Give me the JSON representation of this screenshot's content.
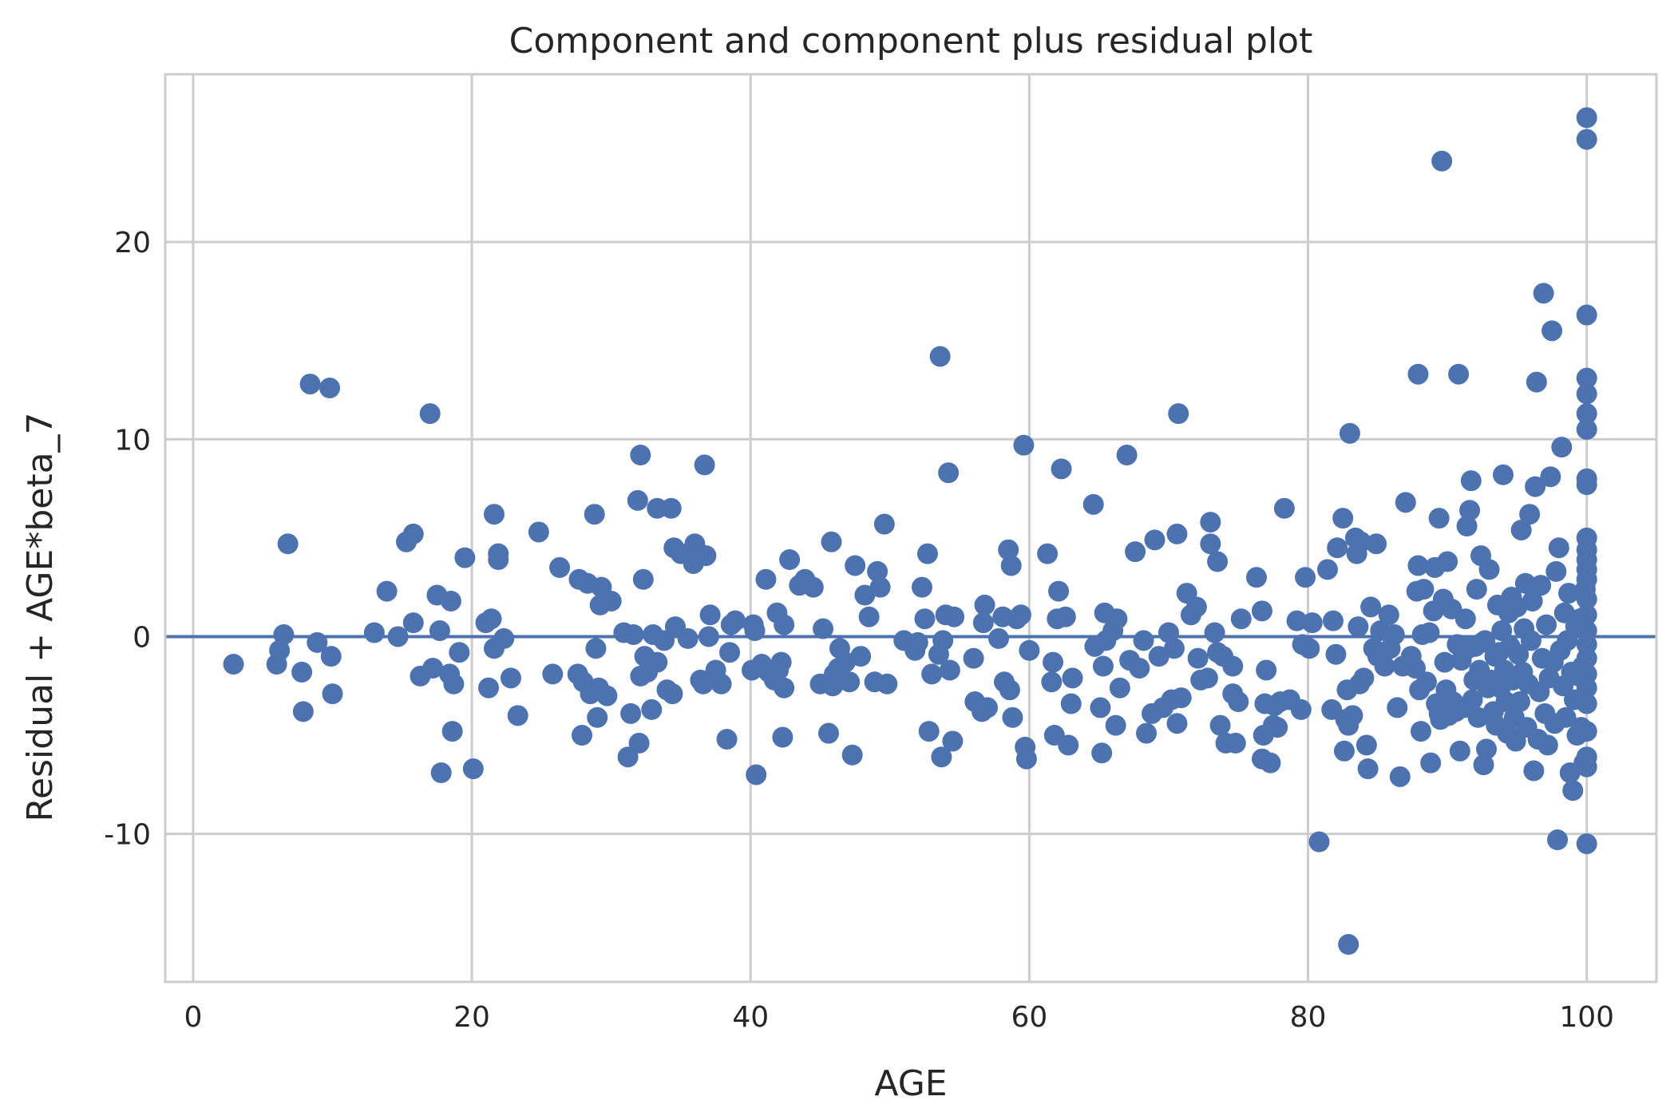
{
  "chart_data": {
    "type": "scatter",
    "title": "Component and component plus residual plot",
    "xlabel": "AGE",
    "ylabel": "Residual + AGE*beta_7",
    "xlim": [
      -2,
      105
    ],
    "ylim": [
      -17.5,
      28.5
    ],
    "xticks": [
      0,
      20,
      40,
      60,
      80,
      100
    ],
    "yticks": [
      20,
      10,
      0,
      -10
    ],
    "ytick_labels": [
      "20",
      "10",
      "0",
      "-10"
    ],
    "grid": true,
    "colors": {
      "points": "#4c72b0",
      "line": "#4c72b0",
      "grid": "#cccccc"
    },
    "fit_line": {
      "x": [
        -2,
        105
      ],
      "y": [
        0,
        0
      ]
    },
    "points": [
      [
        2.9,
        -1.4
      ],
      [
        6.0,
        -1.4
      ],
      [
        6.2,
        -0.7
      ],
      [
        6.5,
        0.1
      ],
      [
        6.8,
        4.7
      ],
      [
        7.8,
        -1.8
      ],
      [
        7.9,
        -3.8
      ],
      [
        8.4,
        12.8
      ],
      [
        8.9,
        -0.3
      ],
      [
        9.8,
        12.6
      ],
      [
        9.9,
        -1.0
      ],
      [
        10.0,
        -2.9
      ],
      [
        13.0,
        0.2
      ],
      [
        13.9,
        2.3
      ],
      [
        14.7,
        0.0
      ],
      [
        15.3,
        4.8
      ],
      [
        15.8,
        5.2
      ],
      [
        15.8,
        0.7
      ],
      [
        16.3,
        -2.0
      ],
      [
        17.0,
        11.3
      ],
      [
        17.2,
        -1.6
      ],
      [
        17.5,
        2.1
      ],
      [
        17.7,
        0.3
      ],
      [
        17.8,
        -6.9
      ],
      [
        18.4,
        -1.9
      ],
      [
        18.5,
        1.8
      ],
      [
        18.6,
        -4.8
      ],
      [
        18.7,
        -2.4
      ],
      [
        19.1,
        -0.8
      ],
      [
        19.5,
        4.0
      ],
      [
        20.1,
        -6.7
      ],
      [
        21.0,
        0.7
      ],
      [
        21.2,
        -2.6
      ],
      [
        21.4,
        0.9
      ],
      [
        21.6,
        -0.6
      ],
      [
        21.6,
        6.2
      ],
      [
        21.9,
        4.2
      ],
      [
        21.9,
        3.9
      ],
      [
        22.3,
        -0.1
      ],
      [
        22.8,
        -2.1
      ],
      [
        23.3,
        -4.0
      ],
      [
        24.8,
        5.3
      ],
      [
        25.8,
        -1.9
      ],
      [
        26.3,
        3.5
      ],
      [
        27.6,
        -1.9
      ],
      [
        27.7,
        2.9
      ],
      [
        27.9,
        -5.0
      ],
      [
        28.0,
        -2.3
      ],
      [
        28.3,
        2.7
      ],
      [
        28.5,
        -2.9
      ],
      [
        28.8,
        6.2
      ],
      [
        28.9,
        -0.6
      ],
      [
        29.0,
        -4.1
      ],
      [
        29.1,
        -2.6
      ],
      [
        29.2,
        1.6
      ],
      [
        29.3,
        2.5
      ],
      [
        29.7,
        -3.0
      ],
      [
        30.0,
        1.8
      ],
      [
        30.9,
        0.2
      ],
      [
        31.2,
        -6.1
      ],
      [
        31.4,
        -3.9
      ],
      [
        31.6,
        0.1
      ],
      [
        31.9,
        6.9
      ],
      [
        32.0,
        -5.4
      ],
      [
        32.1,
        9.2
      ],
      [
        32.1,
        -2.0
      ],
      [
        32.3,
        2.9
      ],
      [
        32.4,
        -1.0
      ],
      [
        32.6,
        -1.8
      ],
      [
        32.9,
        -3.7
      ],
      [
        33.0,
        0.1
      ],
      [
        33.3,
        6.5
      ],
      [
        33.3,
        -1.3
      ],
      [
        33.8,
        -0.2
      ],
      [
        34.0,
        -2.7
      ],
      [
        34.3,
        6.5
      ],
      [
        34.4,
        -2.9
      ],
      [
        34.5,
        4.5
      ],
      [
        34.6,
        0.5
      ],
      [
        35.0,
        4.2
      ],
      [
        35.5,
        -0.1
      ],
      [
        35.9,
        3.7
      ],
      [
        36.0,
        4.7
      ],
      [
        36.2,
        4.3
      ],
      [
        36.4,
        -2.2
      ],
      [
        36.6,
        -2.4
      ],
      [
        36.7,
        8.7
      ],
      [
        36.8,
        4.1
      ],
      [
        37.0,
        0.0
      ],
      [
        37.1,
        1.1
      ],
      [
        37.5,
        -1.7
      ],
      [
        37.9,
        -2.4
      ],
      [
        38.3,
        -5.2
      ],
      [
        38.5,
        -0.8
      ],
      [
        38.6,
        0.6
      ],
      [
        38.9,
        0.8
      ],
      [
        40.1,
        -1.7
      ],
      [
        40.2,
        0.6
      ],
      [
        40.3,
        0.3
      ],
      [
        40.4,
        -7.0
      ],
      [
        40.8,
        -1.4
      ],
      [
        41.1,
        2.9
      ],
      [
        41.3,
        -1.8
      ],
      [
        41.7,
        -2.2
      ],
      [
        41.9,
        1.2
      ],
      [
        42.0,
        -1.7
      ],
      [
        42.2,
        -1.3
      ],
      [
        42.3,
        -5.1
      ],
      [
        42.4,
        -2.6
      ],
      [
        42.4,
        0.6
      ],
      [
        42.8,
        3.9
      ],
      [
        43.5,
        2.6
      ],
      [
        43.9,
        2.9
      ],
      [
        44.5,
        2.5
      ],
      [
        45.0,
        -2.4
      ],
      [
        45.2,
        0.4
      ],
      [
        45.6,
        -4.9
      ],
      [
        45.8,
        4.8
      ],
      [
        45.9,
        -2.5
      ],
      [
        46.0,
        -1.9
      ],
      [
        46.3,
        -1.6
      ],
      [
        46.4,
        -0.6
      ],
      [
        46.8,
        -1.3
      ],
      [
        47.1,
        -2.3
      ],
      [
        47.3,
        -6.0
      ],
      [
        47.5,
        3.6
      ],
      [
        47.9,
        -1.0
      ],
      [
        48.2,
        2.1
      ],
      [
        48.5,
        1.0
      ],
      [
        48.9,
        -2.3
      ],
      [
        49.1,
        3.3
      ],
      [
        49.3,
        2.5
      ],
      [
        49.6,
        5.7
      ],
      [
        49.8,
        -2.4
      ],
      [
        51.0,
        -0.2
      ],
      [
        51.8,
        -0.7
      ],
      [
        52.0,
        -0.3
      ],
      [
        52.3,
        2.5
      ],
      [
        52.5,
        0.9
      ],
      [
        52.7,
        4.2
      ],
      [
        52.8,
        -4.8
      ],
      [
        53.0,
        -1.9
      ],
      [
        53.5,
        -0.9
      ],
      [
        53.6,
        14.2
      ],
      [
        53.7,
        -6.1
      ],
      [
        53.8,
        -0.2
      ],
      [
        54.0,
        1.1
      ],
      [
        54.2,
        8.3
      ],
      [
        54.3,
        -1.7
      ],
      [
        54.5,
        -5.3
      ],
      [
        54.6,
        1.0
      ],
      [
        56.0,
        -1.1
      ],
      [
        56.1,
        -3.3
      ],
      [
        56.6,
        -3.8
      ],
      [
        56.7,
        0.7
      ],
      [
        56.8,
        1.6
      ],
      [
        57.0,
        -3.6
      ],
      [
        57.8,
        -0.1
      ],
      [
        58.1,
        1.0
      ],
      [
        58.2,
        -2.3
      ],
      [
        58.5,
        4.4
      ],
      [
        58.6,
        -2.7
      ],
      [
        58.7,
        3.6
      ],
      [
        58.8,
        -4.1
      ],
      [
        59.1,
        0.9
      ],
      [
        59.4,
        1.1
      ],
      [
        59.6,
        9.7
      ],
      [
        59.7,
        -5.6
      ],
      [
        59.8,
        -6.2
      ],
      [
        60.0,
        -0.7
      ],
      [
        61.3,
        4.2
      ],
      [
        61.6,
        -2.3
      ],
      [
        61.7,
        -1.3
      ],
      [
        61.8,
        -5.0
      ],
      [
        62.0,
        0.9
      ],
      [
        62.1,
        2.3
      ],
      [
        62.3,
        8.5
      ],
      [
        62.6,
        1.0
      ],
      [
        62.8,
        -5.5
      ],
      [
        63.0,
        -3.4
      ],
      [
        63.1,
        -2.1
      ],
      [
        64.6,
        6.7
      ],
      [
        64.7,
        -0.5
      ],
      [
        65.1,
        -3.6
      ],
      [
        65.2,
        -5.9
      ],
      [
        65.3,
        -1.5
      ],
      [
        65.4,
        1.2
      ],
      [
        65.5,
        -0.2
      ],
      [
        66.0,
        0.3
      ],
      [
        66.2,
        -4.5
      ],
      [
        66.3,
        0.9
      ],
      [
        66.5,
        -2.6
      ],
      [
        67.0,
        9.2
      ],
      [
        67.2,
        -1.2
      ],
      [
        67.6,
        4.3
      ],
      [
        67.9,
        -1.6
      ],
      [
        68.2,
        -0.2
      ],
      [
        68.4,
        -4.9
      ],
      [
        68.8,
        -3.9
      ],
      [
        69.0,
        4.9
      ],
      [
        69.3,
        -1.0
      ],
      [
        69.6,
        -3.6
      ],
      [
        70.0,
        0.2
      ],
      [
        70.2,
        -3.2
      ],
      [
        70.4,
        -0.6
      ],
      [
        70.6,
        5.2
      ],
      [
        70.6,
        -4.4
      ],
      [
        70.7,
        11.3
      ],
      [
        70.9,
        -3.1
      ],
      [
        71.3,
        2.2
      ],
      [
        71.6,
        1.1
      ],
      [
        72.0,
        1.5
      ],
      [
        72.1,
        -1.1
      ],
      [
        72.3,
        -2.2
      ],
      [
        72.8,
        -2.1
      ],
      [
        73.0,
        4.7
      ],
      [
        73.0,
        5.8
      ],
      [
        73.3,
        0.2
      ],
      [
        73.5,
        -0.8
      ],
      [
        73.5,
        3.8
      ],
      [
        73.7,
        -4.5
      ],
      [
        73.9,
        -1.0
      ],
      [
        74.1,
        -5.4
      ],
      [
        74.6,
        -2.9
      ],
      [
        74.6,
        -1.5
      ],
      [
        74.8,
        -5.4
      ],
      [
        75.0,
        -3.3
      ],
      [
        75.2,
        0.9
      ],
      [
        76.3,
        3.0
      ],
      [
        76.7,
        -6.2
      ],
      [
        76.7,
        1.3
      ],
      [
        76.8,
        -5.0
      ],
      [
        76.9,
        -3.4
      ],
      [
        77.0,
        -1.7
      ],
      [
        77.3,
        -6.4
      ],
      [
        77.5,
        -4.5
      ],
      [
        77.6,
        -3.5
      ],
      [
        77.8,
        -4.6
      ],
      [
        78.0,
        -3.3
      ],
      [
        78.3,
        6.5
      ],
      [
        78.7,
        -3.2
      ],
      [
        79.2,
        0.8
      ],
      [
        79.5,
        -3.7
      ],
      [
        79.6,
        -0.4
      ],
      [
        79.8,
        3.0
      ],
      [
        80.1,
        -0.6
      ],
      [
        80.3,
        0.7
      ],
      [
        80.8,
        -10.4
      ],
      [
        81.4,
        3.4
      ],
      [
        81.7,
        -3.7
      ],
      [
        81.8,
        0.8
      ],
      [
        82.0,
        -0.9
      ],
      [
        82.1,
        4.5
      ],
      [
        82.5,
        6.0
      ],
      [
        82.6,
        -5.8
      ],
      [
        82.7,
        -4.2
      ],
      [
        82.8,
        -2.7
      ],
      [
        82.9,
        -15.6
      ],
      [
        82.9,
        -4.5
      ],
      [
        83.0,
        10.3
      ],
      [
        83.2,
        -4.0
      ],
      [
        83.4,
        5.0
      ],
      [
        83.5,
        4.2
      ],
      [
        83.6,
        0.5
      ],
      [
        83.7,
        -2.4
      ],
      [
        83.8,
        4.8
      ],
      [
        84.0,
        -2.1
      ],
      [
        84.2,
        -5.5
      ],
      [
        84.3,
        -6.7
      ],
      [
        84.5,
        1.5
      ],
      [
        84.7,
        -0.6
      ],
      [
        84.9,
        4.7
      ],
      [
        85.0,
        -1.0
      ],
      [
        85.2,
        0.3
      ],
      [
        85.5,
        -1.5
      ],
      [
        85.8,
        1.1
      ],
      [
        85.9,
        -0.6
      ],
      [
        86.2,
        0.1
      ],
      [
        86.4,
        -3.6
      ],
      [
        86.6,
        -7.1
      ],
      [
        86.8,
        -1.5
      ],
      [
        87.0,
        6.8
      ],
      [
        87.4,
        -1.0
      ],
      [
        87.7,
        -1.6
      ],
      [
        87.8,
        2.3
      ],
      [
        87.9,
        3.6
      ],
      [
        87.9,
        13.3
      ],
      [
        88.0,
        -2.7
      ],
      [
        88.1,
        -4.8
      ],
      [
        88.2,
        0.1
      ],
      [
        88.3,
        2.4
      ],
      [
        88.5,
        -2.3
      ],
      [
        88.7,
        0.2
      ],
      [
        88.8,
        -6.4
      ],
      [
        89.0,
        1.3
      ],
      [
        89.1,
        3.5
      ],
      [
        89.2,
        -3.4
      ],
      [
        89.4,
        -3.9
      ],
      [
        89.4,
        6.0
      ],
      [
        89.5,
        -4.2
      ],
      [
        89.6,
        24.1
      ],
      [
        89.7,
        1.9
      ],
      [
        89.8,
        -1.3
      ],
      [
        89.9,
        -2.7
      ],
      [
        90.0,
        3.8
      ],
      [
        90.1,
        -4.0
      ],
      [
        90.3,
        1.4
      ],
      [
        90.4,
        -3.3
      ],
      [
        90.6,
        -3.8
      ],
      [
        90.7,
        -0.4
      ],
      [
        90.8,
        13.3
      ],
      [
        90.9,
        -5.8
      ],
      [
        91.0,
        -1.2
      ],
      [
        91.2,
        -3.6
      ],
      [
        91.3,
        0.9
      ],
      [
        91.4,
        5.6
      ],
      [
        91.5,
        -0.6
      ],
      [
        91.6,
        6.4
      ],
      [
        91.7,
        7.9
      ],
      [
        91.8,
        -3.2
      ],
      [
        91.9,
        -2.2
      ],
      [
        92.0,
        -0.5
      ],
      [
        92.1,
        2.4
      ],
      [
        92.2,
        -4.1
      ],
      [
        92.3,
        -1.7
      ],
      [
        92.4,
        4.1
      ],
      [
        92.5,
        -0.3
      ],
      [
        92.6,
        -6.5
      ],
      [
        92.7,
        -0.2
      ],
      [
        92.8,
        -5.7
      ],
      [
        92.9,
        -2.6
      ],
      [
        93.0,
        3.4
      ],
      [
        93.1,
        -2.2
      ],
      [
        93.3,
        -3.8
      ],
      [
        93.4,
        -1.0
      ],
      [
        93.5,
        -4.5
      ],
      [
        93.6,
        1.6
      ],
      [
        93.7,
        -0.8
      ],
      [
        93.8,
        -2.6
      ],
      [
        93.9,
        0.3
      ],
      [
        94.0,
        8.2
      ],
      [
        94.1,
        -1.7
      ],
      [
        94.2,
        -3.3
      ],
      [
        94.3,
        -4.9
      ],
      [
        94.4,
        1.2
      ],
      [
        94.5,
        -0.5
      ],
      [
        94.6,
        2.0
      ],
      [
        94.7,
        -2.2
      ],
      [
        94.8,
        -4.1
      ],
      [
        94.9,
        -5.3
      ],
      [
        95.0,
        1.5
      ],
      [
        95.1,
        -0.9
      ],
      [
        95.2,
        -3.3
      ],
      [
        95.3,
        5.4
      ],
      [
        95.4,
        -1.8
      ],
      [
        95.5,
        0.4
      ],
      [
        95.6,
        2.7
      ],
      [
        95.7,
        -4.6
      ],
      [
        95.8,
        -2.4
      ],
      [
        95.9,
        6.2
      ],
      [
        96.0,
        -0.2
      ],
      [
        96.1,
        1.8
      ],
      [
        96.2,
        -6.8
      ],
      [
        96.3,
        7.6
      ],
      [
        96.4,
        12.9
      ],
      [
        96.5,
        -5.2
      ],
      [
        96.6,
        -2.8
      ],
      [
        96.7,
        2.6
      ],
      [
        96.8,
        -1.1
      ],
      [
        96.9,
        17.4
      ],
      [
        97.0,
        -3.9
      ],
      [
        97.1,
        0.6
      ],
      [
        97.2,
        -5.5
      ],
      [
        97.3,
        -2.1
      ],
      [
        97.4,
        8.1
      ],
      [
        97.5,
        15.5
      ],
      [
        97.6,
        -1.3
      ],
      [
        97.7,
        -4.4
      ],
      [
        97.8,
        3.3
      ],
      [
        97.9,
        -10.3
      ],
      [
        98.0,
        4.5
      ],
      [
        98.1,
        -0.7
      ],
      [
        98.2,
        9.6
      ],
      [
        98.3,
        -2.5
      ],
      [
        98.4,
        1.2
      ],
      [
        98.5,
        -4.1
      ],
      [
        98.6,
        -0.2
      ],
      [
        98.7,
        2.2
      ],
      [
        98.8,
        -6.9
      ],
      [
        98.9,
        -1.8
      ],
      [
        99.0,
        -7.8
      ],
      [
        99.1,
        -3.2
      ],
      [
        99.2,
        0.5
      ],
      [
        99.3,
        -5.0
      ],
      [
        99.4,
        -2.0
      ],
      [
        99.5,
        0.9
      ],
      [
        99.6,
        -4.6
      ],
      [
        99.7,
        -1.5
      ],
      [
        99.8,
        -6.4
      ],
      [
        99.9,
        2.4
      ],
      [
        100.0,
        26.3
      ],
      [
        100.0,
        25.2
      ],
      [
        100.0,
        16.3
      ],
      [
        100.0,
        13.1
      ],
      [
        100.0,
        12.3
      ],
      [
        100.0,
        11.3
      ],
      [
        100.0,
        10.5
      ],
      [
        100.0,
        8.0
      ],
      [
        100.0,
        7.7
      ],
      [
        100.0,
        5.0
      ],
      [
        100.0,
        4.4
      ],
      [
        100.0,
        3.9
      ],
      [
        100.0,
        3.4
      ],
      [
        100.0,
        2.9
      ],
      [
        100.0,
        1.9
      ],
      [
        100.0,
        1.1
      ],
      [
        100.0,
        0.3
      ],
      [
        100.0,
        -0.4
      ],
      [
        100.0,
        -1.1
      ],
      [
        100.0,
        -1.9
      ],
      [
        100.0,
        -2.6
      ],
      [
        100.0,
        -3.4
      ],
      [
        100.0,
        -4.8
      ],
      [
        100.0,
        -6.1
      ],
      [
        100.0,
        -6.6
      ],
      [
        100.0,
        -10.5
      ]
    ]
  }
}
